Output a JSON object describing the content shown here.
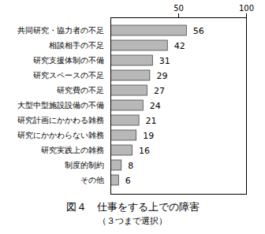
{
  "chart_data": {
    "type": "bar",
    "orientation": "horizontal",
    "title": "図４　仕事をする上での障害",
    "subtitle": "（３つまで選択）",
    "categories": [
      "共同研究・協力者の不足",
      "相談相手の不足",
      "研究支援体制の不備",
      "研究スペースの不足",
      "研究費の不足",
      "大型中型施設設備の不備",
      "研究計画にかかわる雑務",
      "研究にかかわらない雑務",
      "研究実践上の雑務",
      "制度的制約",
      "その他"
    ],
    "values": [
      56,
      42,
      31,
      29,
      27,
      24,
      21,
      19,
      16,
      8,
      6
    ],
    "color": "#b8b8b8",
    "xlim": [
      0,
      100
    ],
    "xticks": [
      50,
      100
    ],
    "grid": false,
    "data_labels": true
  }
}
